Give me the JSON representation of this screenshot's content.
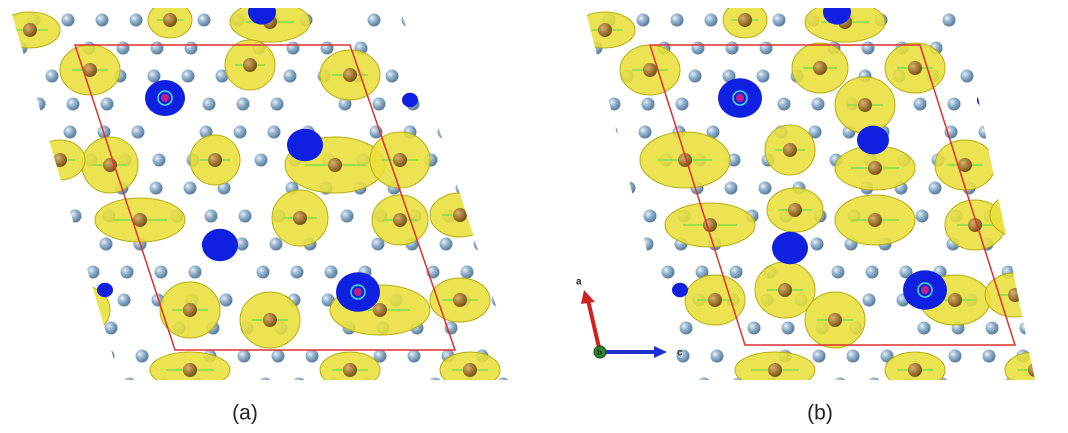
{
  "panels": [
    {
      "label": "(a)"
    },
    {
      "label": "(b)"
    }
  ],
  "axes": {
    "a": "a",
    "b": "b",
    "c": "c"
  }
}
